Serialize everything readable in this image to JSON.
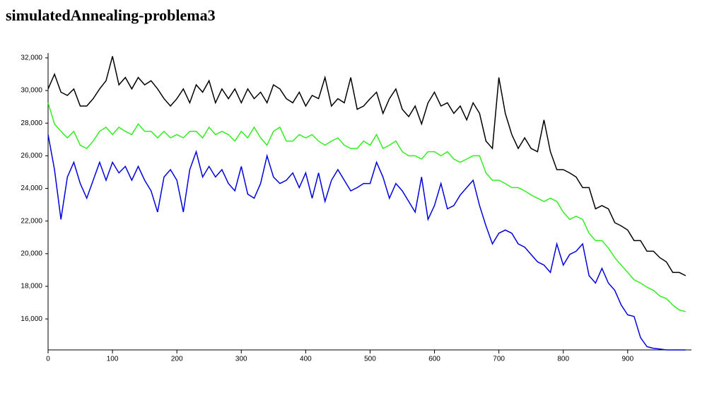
{
  "chart_data": {
    "type": "line",
    "title": "simulatedAnnealing-problema3",
    "x": [
      0,
      10,
      20,
      30,
      40,
      50,
      60,
      70,
      80,
      90,
      100,
      110,
      120,
      130,
      140,
      150,
      160,
      170,
      180,
      190,
      200,
      210,
      220,
      230,
      240,
      250,
      260,
      270,
      280,
      290,
      300,
      310,
      320,
      330,
      340,
      350,
      360,
      370,
      380,
      390,
      400,
      410,
      420,
      430,
      440,
      450,
      460,
      470,
      480,
      490,
      500,
      510,
      520,
      530,
      540,
      550,
      560,
      570,
      580,
      590,
      600,
      610,
      620,
      630,
      640,
      650,
      660,
      670,
      680,
      690,
      700,
      710,
      720,
      730,
      740,
      750,
      760,
      770,
      780,
      790,
      800,
      810,
      820,
      830,
      840,
      850,
      860,
      870,
      880,
      890,
      900,
      910,
      920,
      930,
      940,
      950,
      960,
      970,
      980,
      990
    ],
    "series": [
      {
        "color": "#000000",
        "values": [
          30100,
          31000,
          29900,
          29700,
          30100,
          29050,
          29050,
          29500,
          30100,
          30600,
          32100,
          30350,
          30800,
          30100,
          30800,
          30350,
          30600,
          30100,
          29500,
          29050,
          29500,
          30100,
          29250,
          30350,
          29900,
          30600,
          29250,
          30100,
          29500,
          30100,
          29250,
          30100,
          29500,
          29900,
          29250,
          30350,
          30100,
          29500,
          29250,
          29900,
          29050,
          29700,
          29500,
          30800,
          29050,
          29500,
          29250,
          30800,
          28850,
          29050,
          29500,
          29900,
          28600,
          29500,
          30100,
          28850,
          28400,
          29050,
          27950,
          29250,
          29900,
          29050,
          29250,
          28600,
          29050,
          28200,
          29250,
          28600,
          26900,
          26450,
          30800,
          28600,
          27300,
          26450,
          27100,
          26450,
          26250,
          28200,
          26250,
          25150,
          25150,
          24950,
          24700,
          24050,
          24050,
          22750,
          22950,
          22750,
          21900,
          21700,
          21450,
          20800,
          20800,
          20150,
          20150,
          19750,
          19500,
          18850,
          18850,
          18650
        ]
      },
      {
        "color": "#33ee22",
        "values": [
          29250,
          27950,
          27500,
          27100,
          27500,
          26650,
          26450,
          26900,
          27500,
          27750,
          27300,
          27750,
          27500,
          27300,
          27950,
          27500,
          27500,
          27100,
          27500,
          27100,
          27300,
          27100,
          27500,
          27500,
          27100,
          27750,
          27300,
          27500,
          27300,
          26900,
          27500,
          27100,
          27750,
          27100,
          26650,
          27500,
          27750,
          26900,
          26900,
          27300,
          27100,
          27300,
          26900,
          26650,
          26900,
          27100,
          26650,
          26450,
          26450,
          26900,
          26650,
          27300,
          26450,
          26650,
          26900,
          26250,
          26000,
          26000,
          25800,
          26250,
          26250,
          26000,
          26250,
          25800,
          25600,
          25800,
          26000,
          26000,
          24950,
          24500,
          24500,
          24300,
          24050,
          24050,
          23850,
          23600,
          23400,
          23200,
          23400,
          23200,
          22550,
          22100,
          22300,
          22100,
          21250,
          20800,
          20800,
          20350,
          19750,
          19300,
          18850,
          18400,
          18200,
          17950,
          17750,
          17400,
          17250,
          16850,
          16550,
          16450
        ]
      },
      {
        "color": "#0000dd",
        "values": [
          27300,
          25150,
          22100,
          24700,
          25600,
          24300,
          23400,
          24500,
          25600,
          24500,
          25600,
          24950,
          25350,
          24500,
          25350,
          24500,
          23850,
          22550,
          24700,
          25150,
          24500,
          22550,
          25150,
          26250,
          24700,
          25350,
          24700,
          25150,
          24300,
          23850,
          25350,
          23650,
          23400,
          24300,
          26000,
          24700,
          24300,
          24500,
          24950,
          24050,
          24950,
          23400,
          24950,
          23200,
          24500,
          25150,
          24500,
          23850,
          24050,
          24300,
          24300,
          25600,
          24700,
          23400,
          24300,
          23850,
          23200,
          22550,
          24700,
          22100,
          22950,
          24300,
          22750,
          22950,
          23600,
          24050,
          24500,
          22950,
          21700,
          20600,
          21250,
          21450,
          21250,
          20600,
          20400,
          19950,
          19500,
          19300,
          18850,
          20600,
          19300,
          19950,
          20150,
          20600,
          18650,
          18200,
          19100,
          18200,
          17750,
          16850,
          16250,
          16150,
          14850,
          14300,
          14200,
          14150,
          14100,
          14100,
          14100,
          14100
        ]
      }
    ],
    "xlim": [
      0,
      999
    ],
    "ylim": [
      14100,
      32300
    ],
    "xticks": [
      0,
      100,
      200,
      300,
      400,
      500,
      600,
      700,
      800,
      900
    ],
    "yticks": [
      {
        "value": 16000,
        "label": "16,000"
      },
      {
        "value": 18000,
        "label": "18,000"
      },
      {
        "value": 20000,
        "label": "20,000"
      },
      {
        "value": 22000,
        "label": "22,000"
      },
      {
        "value": 24000,
        "label": "24,000"
      },
      {
        "value": 26000,
        "label": "26,000"
      },
      {
        "value": 28000,
        "label": "28,000"
      },
      {
        "value": 30000,
        "label": "30,000"
      },
      {
        "value": 32000,
        "label": "32,000"
      }
    ]
  }
}
